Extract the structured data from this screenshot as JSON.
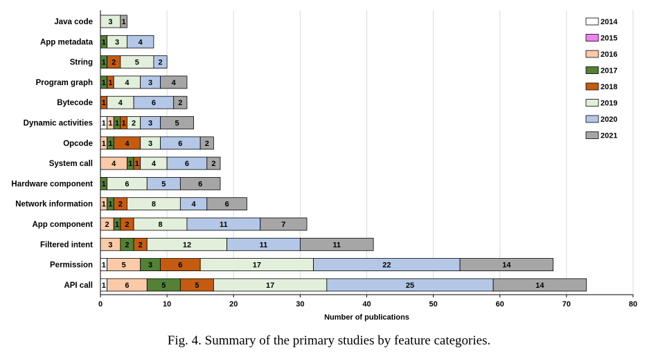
{
  "caption": "Fig. 4.  Summary of the primary studies by feature categories.",
  "chart_data": {
    "type": "bar",
    "orientation": "horizontal",
    "stacked": true,
    "title": "",
    "xlabel": "Number of publications",
    "ylabel": "",
    "xlim": [
      0,
      80
    ],
    "xticks": [
      0,
      10,
      20,
      30,
      40,
      50,
      60,
      70,
      80
    ],
    "grid": "vertical",
    "legend_position": "right",
    "categories": [
      "Java code",
      "App metadata",
      "String",
      "Program graph",
      "Bytecode",
      "Dynamic activities",
      "Opcode",
      "System call",
      "Hardware component",
      "Network information",
      "App component",
      "Filtered intent",
      "Permission",
      "API call"
    ],
    "series": [
      {
        "name": "2014",
        "color": "#ffffff",
        "values": [
          0,
          0,
          0,
          0,
          0,
          1,
          0,
          0,
          0,
          0,
          0,
          0,
          1,
          1
        ]
      },
      {
        "name": "2015",
        "color": "#ee82ee",
        "values": [
          0,
          0,
          0,
          0,
          0,
          0,
          0,
          0,
          0,
          0,
          0,
          0,
          0,
          0
        ]
      },
      {
        "name": "2016",
        "color": "#fbcaa9",
        "values": [
          0,
          0,
          0,
          0,
          0,
          1,
          1,
          4,
          0,
          1,
          2,
          3,
          5,
          6
        ]
      },
      {
        "name": "2017",
        "color": "#548235",
        "values": [
          0,
          1,
          1,
          1,
          0,
          1,
          1,
          1,
          1,
          1,
          1,
          2,
          3,
          5
        ]
      },
      {
        "name": "2018",
        "color": "#c55a11",
        "values": [
          0,
          0,
          2,
          1,
          1,
          1,
          4,
          1,
          0,
          2,
          2,
          2,
          6,
          5
        ]
      },
      {
        "name": "2019",
        "color": "#e2efda",
        "values": [
          3,
          3,
          5,
          4,
          4,
          2,
          3,
          4,
          6,
          8,
          8,
          12,
          17,
          17
        ]
      },
      {
        "name": "2020",
        "color": "#b4c7e7",
        "values": [
          0,
          4,
          2,
          3,
          6,
          3,
          6,
          6,
          5,
          4,
          11,
          11,
          22,
          25
        ]
      },
      {
        "name": "2021",
        "color": "#a6a6a6",
        "values": [
          1,
          0,
          0,
          4,
          2,
          5,
          2,
          2,
          6,
          6,
          7,
          11,
          14,
          14
        ]
      }
    ]
  }
}
